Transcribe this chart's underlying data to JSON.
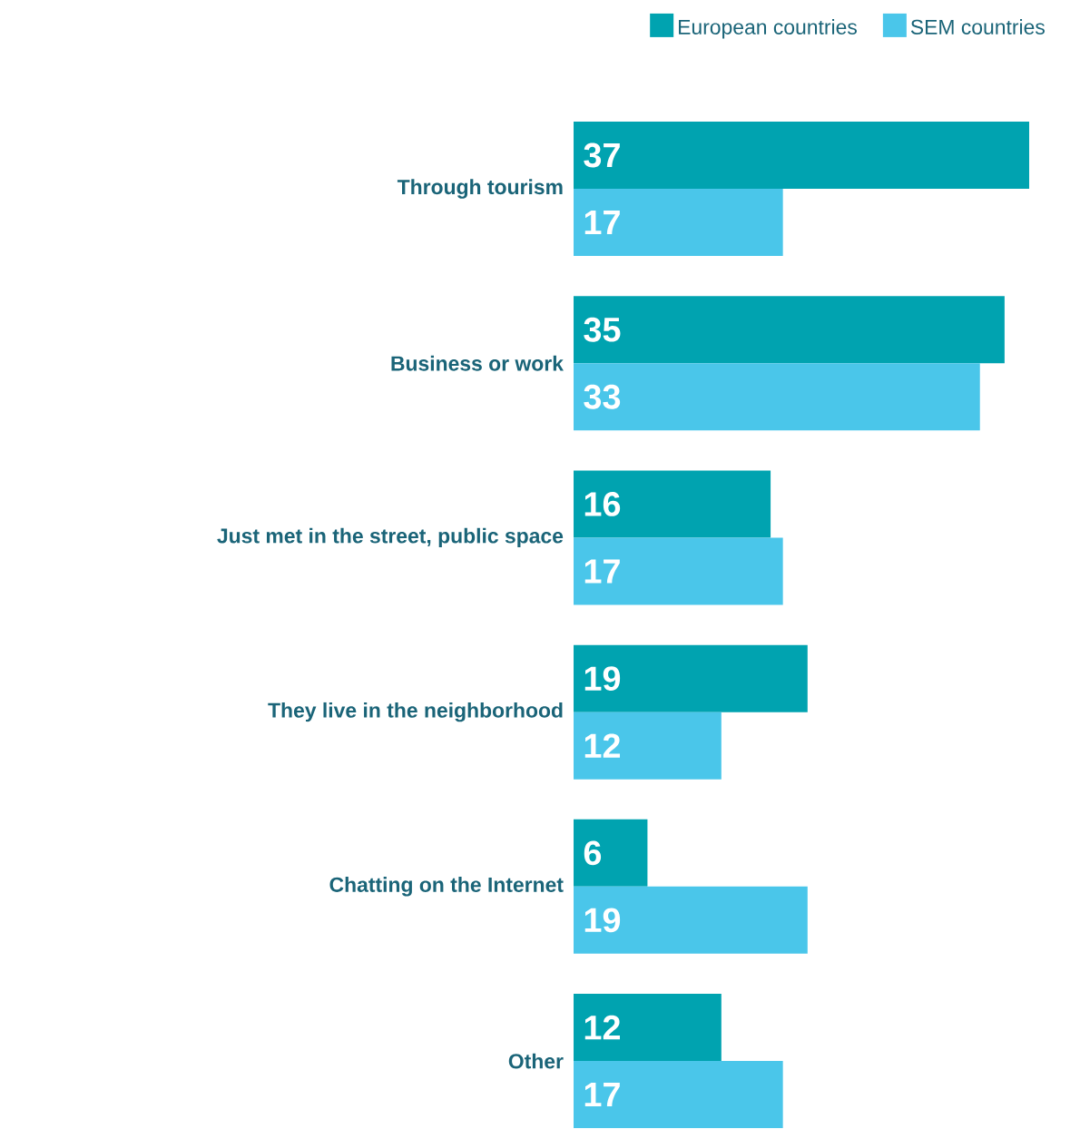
{
  "chart_data": {
    "type": "bar",
    "orientation": "horizontal",
    "data_labels": true,
    "legend": "top right",
    "categories": [
      "Through tourism",
      "Business or work",
      "Just met in the street, public space",
      "They live in the neighborhood",
      "Chatting on the Internet",
      "Other"
    ],
    "series": [
      {
        "name": "European countries",
        "color": "#00a3b0",
        "values": [
          37,
          35,
          16,
          19,
          6,
          12
        ]
      },
      {
        "name": "SEM countries",
        "color": "#4ac6ea",
        "values": [
          17,
          33,
          17,
          12,
          19,
          17
        ]
      }
    ]
  }
}
